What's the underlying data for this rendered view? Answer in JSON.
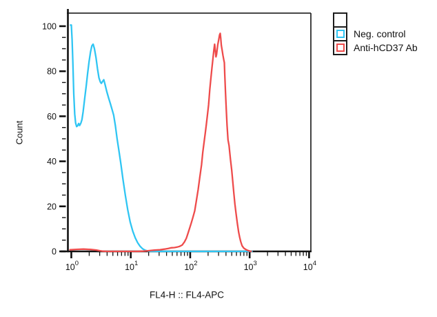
{
  "chart_data": {
    "type": "line",
    "subtype": "flow-cytometry-histogram-overlay",
    "title": "",
    "xlabel": "FL4-H :: FL4-APC",
    "ylabel": "Count",
    "x_scale": "log",
    "x_tick_base": "10",
    "x_tick_exponents": [
      0,
      1,
      2,
      3,
      4
    ],
    "y_ticks": [
      0,
      20,
      40,
      60,
      80,
      100
    ],
    "y_minor_step": 5,
    "xlim_log": [
      -0.075,
      4.03
    ],
    "ylim": [
      0,
      105.8
    ],
    "grid": false,
    "legend_position": "top-right",
    "axis_color": "#111111",
    "frame_color": "#2d2d2d",
    "series": [
      {
        "name": "Neg. control",
        "color": "#2FC5F3",
        "points": [
          [
            0.97,
            100.5
          ],
          [
            1.0,
            100.5
          ],
          [
            1.03,
            94
          ],
          [
            1.06,
            84
          ],
          [
            1.1,
            70
          ],
          [
            1.14,
            61
          ],
          [
            1.18,
            57
          ],
          [
            1.23,
            55.4
          ],
          [
            1.28,
            55.8
          ],
          [
            1.33,
            56.8
          ],
          [
            1.38,
            55.9
          ],
          [
            1.45,
            57
          ],
          [
            1.51,
            58.5
          ],
          [
            1.58,
            62
          ],
          [
            1.68,
            68
          ],
          [
            1.78,
            73.5
          ],
          [
            1.88,
            79
          ],
          [
            1.98,
            84
          ],
          [
            2.1,
            88.5
          ],
          [
            2.22,
            91.3
          ],
          [
            2.33,
            92
          ],
          [
            2.45,
            90
          ],
          [
            2.6,
            86
          ],
          [
            2.76,
            81
          ],
          [
            2.92,
            77
          ],
          [
            3.08,
            75.2
          ],
          [
            3.2,
            74.6
          ],
          [
            3.38,
            75.6
          ],
          [
            3.52,
            76.2
          ],
          [
            3.7,
            74
          ],
          [
            3.95,
            71
          ],
          [
            4.25,
            68
          ],
          [
            4.55,
            65.5
          ],
          [
            4.85,
            63
          ],
          [
            5.15,
            60.5
          ],
          [
            5.5,
            56
          ],
          [
            5.9,
            50
          ],
          [
            6.3,
            45
          ],
          [
            6.8,
            39
          ],
          [
            7.4,
            32
          ],
          [
            8.1,
            25
          ],
          [
            8.9,
            18.5
          ],
          [
            9.8,
            13
          ],
          [
            10.8,
            9
          ],
          [
            11.9,
            6
          ],
          [
            13.1,
            3.8
          ],
          [
            14.4,
            2.2
          ],
          [
            15.9,
            1.1
          ],
          [
            17.5,
            0.5
          ],
          [
            19.5,
            0.15
          ],
          [
            22,
            0
          ],
          [
            1100,
            0
          ]
        ]
      },
      {
        "name": "Anti-hCD37 Ab",
        "color": "#EE4B4B",
        "points": [
          [
            0.95,
            0.7
          ],
          [
            1.2,
            0.9
          ],
          [
            1.6,
            1.0
          ],
          [
            2.1,
            0.85
          ],
          [
            2.6,
            0.6
          ],
          [
            3.0,
            0.3
          ],
          [
            3.4,
            0.1
          ],
          [
            4.0,
            0
          ],
          [
            13,
            0
          ],
          [
            16,
            0.1
          ],
          [
            20,
            0.3
          ],
          [
            25,
            0.55
          ],
          [
            31,
            0.75
          ],
          [
            37,
            1.0
          ],
          [
            43,
            1.3
          ],
          [
            48,
            1.6
          ],
          [
            54,
            1.7
          ],
          [
            60,
            1.9
          ],
          [
            66,
            2.2
          ],
          [
            73,
            2.8
          ],
          [
            80,
            4.2
          ],
          [
            86,
            5.8
          ],
          [
            91,
            7.7
          ],
          [
            97,
            10
          ],
          [
            104,
            12.5
          ],
          [
            111,
            15
          ],
          [
            119,
            18
          ],
          [
            127,
            22.5
          ],
          [
            136,
            27.5
          ],
          [
            145,
            33
          ],
          [
            155,
            38.5
          ],
          [
            163,
            44
          ],
          [
            172,
            49
          ],
          [
            180,
            53
          ],
          [
            187,
            56.5
          ],
          [
            196,
            61
          ],
          [
            204,
            65
          ],
          [
            214,
            72
          ],
          [
            223,
            77
          ],
          [
            232,
            81.5
          ],
          [
            241,
            85.5
          ],
          [
            250,
            89.5
          ],
          [
            258,
            92
          ],
          [
            265,
            89
          ],
          [
            271,
            86.4
          ],
          [
            278,
            87.5
          ],
          [
            290,
            91.5
          ],
          [
            302,
            94
          ],
          [
            312,
            96.2
          ],
          [
            320,
            96.8
          ],
          [
            327,
            94.5
          ],
          [
            334,
            91.5
          ],
          [
            344,
            89.5
          ],
          [
            356,
            87
          ],
          [
            368,
            85
          ],
          [
            376,
            83.8
          ],
          [
            382,
            78.5
          ],
          [
            392,
            71
          ],
          [
            404,
            63.5
          ],
          [
            417,
            56
          ],
          [
            433,
            49.5
          ],
          [
            450,
            47
          ],
          [
            475,
            41
          ],
          [
            500,
            36
          ],
          [
            520,
            31
          ],
          [
            542,
            26
          ],
          [
            565,
            21
          ],
          [
            589,
            17
          ],
          [
            620,
            12.5
          ],
          [
            653,
            8.6
          ],
          [
            680,
            6.3
          ],
          [
            707,
            4.4
          ],
          [
            746,
            2.5
          ],
          [
            800,
            1.4
          ],
          [
            851,
            0.95
          ],
          [
            920,
            0.45
          ],
          [
            1000,
            0.15
          ],
          [
            1060,
            0
          ]
        ]
      }
    ]
  },
  "legend": {
    "items": [
      {
        "label": ""
      },
      {
        "label": "Neg. control"
      },
      {
        "label": "Anti-hCD37 Ab"
      }
    ]
  }
}
